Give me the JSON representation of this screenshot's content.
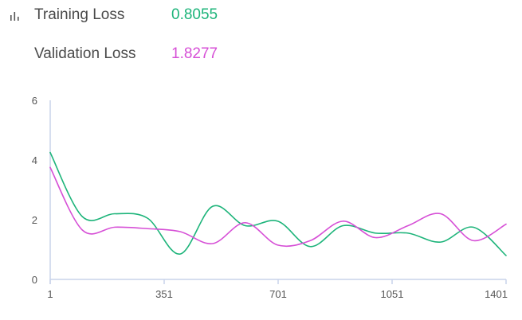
{
  "metrics": {
    "training": {
      "label": "Training Loss",
      "value": "0.8055",
      "color": "#1db47a"
    },
    "validation": {
      "label": "Validation Loss",
      "value": "1.8277",
      "color": "#d64fd6"
    }
  },
  "icon": "bar-chart-icon",
  "chart_data": {
    "type": "line",
    "title": "",
    "xlabel": "",
    "ylabel": "",
    "xlim": [
      1,
      1401
    ],
    "ylim": [
      0,
      6
    ],
    "x_ticks": [
      1,
      351,
      701,
      1051,
      1401
    ],
    "y_ticks": [
      0,
      2,
      4,
      6
    ],
    "grid": false,
    "legend": "none",
    "series": [
      {
        "color": "#1db47a",
        "x": [
          1,
          100,
          200,
          300,
          400,
          500,
          600,
          700,
          800,
          900,
          1000,
          1100,
          1200,
          1300,
          1401
        ],
        "y": [
          4.25,
          2.1,
          2.2,
          2.05,
          0.85,
          2.45,
          1.8,
          1.95,
          1.1,
          1.8,
          1.55,
          1.55,
          1.25,
          1.75,
          0.8
        ]
      },
      {
        "color": "#d64fd6",
        "x": [
          1,
          100,
          200,
          300,
          400,
          500,
          600,
          700,
          800,
          900,
          1000,
          1100,
          1200,
          1300,
          1401
        ],
        "y": [
          3.75,
          1.65,
          1.75,
          1.7,
          1.6,
          1.2,
          1.9,
          1.15,
          1.3,
          1.95,
          1.4,
          1.8,
          2.2,
          1.3,
          1.85
        ]
      }
    ]
  }
}
